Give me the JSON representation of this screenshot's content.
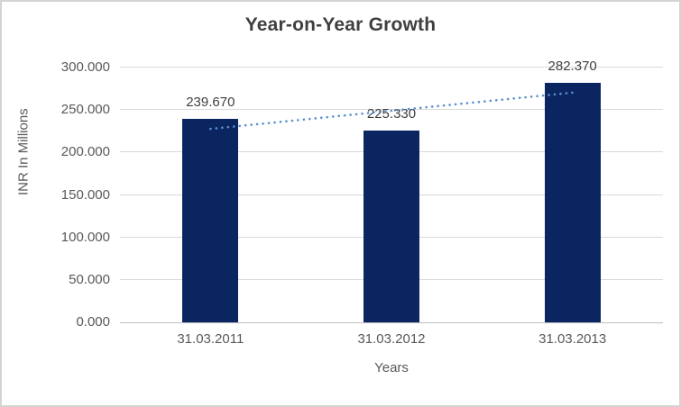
{
  "frame": {
    "background": "#ffffff",
    "border_color": "#d4d4d4"
  },
  "chart_data": {
    "type": "bar",
    "title": "Year-on-Year Growth",
    "xlabel": "Years",
    "ylabel": "INR In Millions",
    "categories": [
      "31.03.2011",
      "31.03.2012",
      "31.03.2013"
    ],
    "series": [
      {
        "name": "INR In Millions",
        "type": "bar",
        "values": [
          239.67,
          225.33,
          282.37
        ],
        "data_labels": [
          "239.670",
          "225.330",
          "282.370"
        ],
        "color": "#0b2561"
      },
      {
        "name": "linear-trendline",
        "type": "dotted-line",
        "color": "#5b8fd0"
      }
    ],
    "ylim": [
      0,
      300
    ],
    "yticks": [
      {
        "label": "0.000",
        "value": 0
      },
      {
        "label": "50.000",
        "value": 50
      },
      {
        "label": "100.000",
        "value": 100
      },
      {
        "label": "150.000",
        "value": 150
      },
      {
        "label": "200.000",
        "value": 200
      },
      {
        "label": "250.000",
        "value": 250
      },
      {
        "label": "300.000",
        "value": 300
      }
    ],
    "grid": true,
    "legend": "none",
    "gridline_color": "#d9d9d9",
    "axis_line_color": "#bfbfbf",
    "text_color": "#595959",
    "title_color": "#3f3f3f"
  }
}
